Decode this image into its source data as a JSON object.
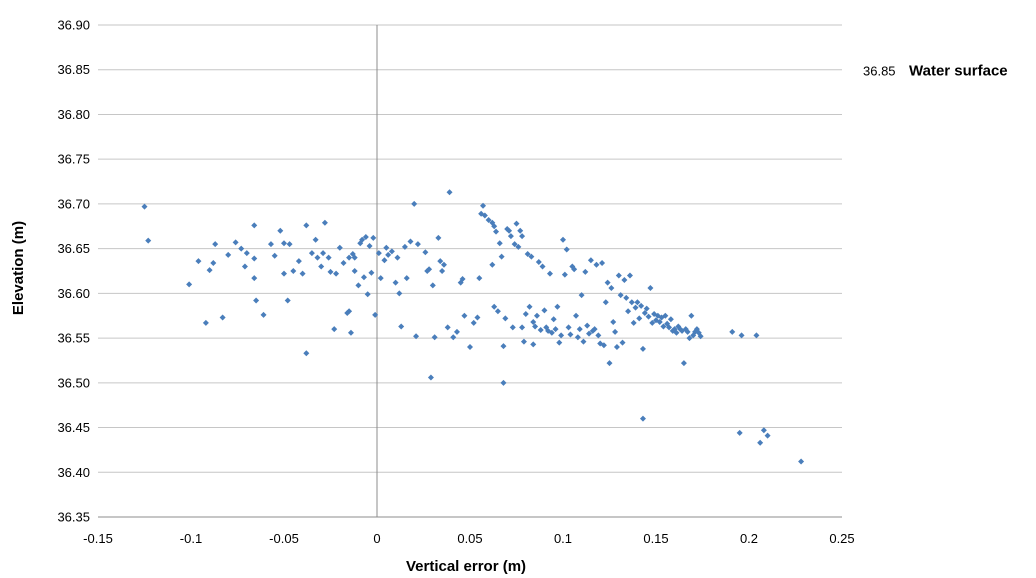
{
  "chart_data": {
    "type": "scatter",
    "xlabel": "Vertical error (m)",
    "ylabel": "Elevation (m)",
    "xlim": [
      -0.15,
      0.25
    ],
    "ylim": [
      36.35,
      36.9
    ],
    "x_ticks": [
      "-0.15",
      "-0.1",
      "-0.05",
      "0",
      "0.05",
      "0.1",
      "0.15",
      "0.2",
      "0.25"
    ],
    "y_ticks": [
      "36.35",
      "36.40",
      "36.45",
      "36.50",
      "36.55",
      "36.60",
      "36.65",
      "36.70",
      "36.75",
      "36.80",
      "36.85",
      "36.90"
    ],
    "grid": "horizontal",
    "marker_color": "#4a7ebb",
    "annotation": {
      "value": "36.85",
      "label": "Water surface",
      "y": 36.85
    },
    "points": [
      [
        -0.125,
        36.697
      ],
      [
        -0.123,
        36.659
      ],
      [
        -0.101,
        36.61
      ],
      [
        -0.096,
        36.636
      ],
      [
        -0.092,
        36.567
      ],
      [
        -0.09,
        36.626
      ],
      [
        -0.088,
        36.634
      ],
      [
        -0.087,
        36.655
      ],
      [
        -0.083,
        36.573
      ],
      [
        -0.08,
        36.643
      ],
      [
        -0.076,
        36.657
      ],
      [
        -0.073,
        36.65
      ],
      [
        -0.071,
        36.63
      ],
      [
        -0.07,
        36.645
      ],
      [
        -0.066,
        36.676
      ],
      [
        -0.066,
        36.639
      ],
      [
        -0.066,
        36.617
      ],
      [
        -0.065,
        36.592
      ],
      [
        -0.061,
        36.576
      ],
      [
        -0.057,
        36.655
      ],
      [
        -0.055,
        36.642
      ],
      [
        -0.052,
        36.67
      ],
      [
        -0.05,
        36.622
      ],
      [
        -0.05,
        36.656
      ],
      [
        -0.048,
        36.592
      ],
      [
        -0.047,
        36.655
      ],
      [
        -0.045,
        36.625
      ],
      [
        -0.042,
        36.636
      ],
      [
        -0.04,
        36.622
      ],
      [
        -0.038,
        36.676
      ],
      [
        -0.038,
        36.533
      ],
      [
        -0.035,
        36.645
      ],
      [
        -0.033,
        36.66
      ],
      [
        -0.032,
        36.64
      ],
      [
        -0.03,
        36.63
      ],
      [
        -0.029,
        36.645
      ],
      [
        -0.028,
        36.679
      ],
      [
        -0.026,
        36.64
      ],
      [
        -0.025,
        36.624
      ],
      [
        -0.023,
        36.56
      ],
      [
        -0.022,
        36.622
      ],
      [
        -0.02,
        36.651
      ],
      [
        -0.018,
        36.634
      ],
      [
        -0.016,
        36.578
      ],
      [
        -0.015,
        36.64
      ],
      [
        -0.015,
        36.58
      ],
      [
        -0.014,
        36.556
      ],
      [
        -0.013,
        36.644
      ],
      [
        -0.012,
        36.64
      ],
      [
        -0.012,
        36.625
      ],
      [
        -0.01,
        36.609
      ],
      [
        -0.009,
        36.656
      ],
      [
        -0.008,
        36.66
      ],
      [
        -0.007,
        36.618
      ],
      [
        -0.006,
        36.663
      ],
      [
        -0.005,
        36.599
      ],
      [
        -0.004,
        36.653
      ],
      [
        -0.003,
        36.623
      ],
      [
        -0.002,
        36.662
      ],
      [
        -0.001,
        36.576
      ],
      [
        0.001,
        36.645
      ],
      [
        0.002,
        36.617
      ],
      [
        0.004,
        36.637
      ],
      [
        0.005,
        36.651
      ],
      [
        0.006,
        36.643
      ],
      [
        0.008,
        36.647
      ],
      [
        0.01,
        36.612
      ],
      [
        0.011,
        36.64
      ],
      [
        0.012,
        36.6
      ],
      [
        0.013,
        36.563
      ],
      [
        0.015,
        36.652
      ],
      [
        0.016,
        36.617
      ],
      [
        0.018,
        36.658
      ],
      [
        0.02,
        36.7
      ],
      [
        0.021,
        36.552
      ],
      [
        0.022,
        36.655
      ],
      [
        0.026,
        36.646
      ],
      [
        0.027,
        36.625
      ],
      [
        0.028,
        36.627
      ],
      [
        0.029,
        36.506
      ],
      [
        0.03,
        36.609
      ],
      [
        0.031,
        36.551
      ],
      [
        0.033,
        36.662
      ],
      [
        0.034,
        36.636
      ],
      [
        0.035,
        36.625
      ],
      [
        0.036,
        36.632
      ],
      [
        0.038,
        36.562
      ],
      [
        0.039,
        36.713
      ],
      [
        0.041,
        36.551
      ],
      [
        0.043,
        36.557
      ],
      [
        0.045,
        36.612
      ],
      [
        0.046,
        36.616
      ],
      [
        0.047,
        36.575
      ],
      [
        0.05,
        36.54
      ],
      [
        0.052,
        36.567
      ],
      [
        0.054,
        36.573
      ],
      [
        0.055,
        36.617
      ],
      [
        0.056,
        36.689
      ],
      [
        0.057,
        36.698
      ],
      [
        0.058,
        36.687
      ],
      [
        0.06,
        36.682
      ],
      [
        0.062,
        36.679
      ],
      [
        0.063,
        36.675
      ],
      [
        0.064,
        36.669
      ],
      [
        0.062,
        36.632
      ],
      [
        0.063,
        36.585
      ],
      [
        0.065,
        36.58
      ],
      [
        0.066,
        36.656
      ],
      [
        0.067,
        36.641
      ],
      [
        0.068,
        36.5
      ],
      [
        0.068,
        36.541
      ],
      [
        0.069,
        36.572
      ],
      [
        0.07,
        36.672
      ],
      [
        0.071,
        36.67
      ],
      [
        0.072,
        36.664
      ],
      [
        0.073,
        36.562
      ],
      [
        0.074,
        36.655
      ],
      [
        0.075,
        36.678
      ],
      [
        0.076,
        36.652
      ],
      [
        0.077,
        36.67
      ],
      [
        0.078,
        36.664
      ],
      [
        0.078,
        36.562
      ],
      [
        0.079,
        36.546
      ],
      [
        0.08,
        36.577
      ],
      [
        0.081,
        36.644
      ],
      [
        0.082,
        36.585
      ],
      [
        0.083,
        36.641
      ],
      [
        0.084,
        36.568
      ],
      [
        0.084,
        36.543
      ],
      [
        0.085,
        36.563
      ],
      [
        0.086,
        36.575
      ],
      [
        0.087,
        36.635
      ],
      [
        0.088,
        36.559
      ],
      [
        0.089,
        36.63
      ],
      [
        0.09,
        36.581
      ],
      [
        0.091,
        36.562
      ],
      [
        0.092,
        36.558
      ],
      [
        0.093,
        36.622
      ],
      [
        0.094,
        36.556
      ],
      [
        0.095,
        36.571
      ],
      [
        0.096,
        36.56
      ],
      [
        0.097,
        36.585
      ],
      [
        0.098,
        36.545
      ],
      [
        0.099,
        36.553
      ],
      [
        0.1,
        36.66
      ],
      [
        0.101,
        36.621
      ],
      [
        0.102,
        36.649
      ],
      [
        0.103,
        36.562
      ],
      [
        0.104,
        36.554
      ],
      [
        0.105,
        36.63
      ],
      [
        0.106,
        36.627
      ],
      [
        0.107,
        36.575
      ],
      [
        0.108,
        36.551
      ],
      [
        0.109,
        36.56
      ],
      [
        0.11,
        36.598
      ],
      [
        0.111,
        36.546
      ],
      [
        0.112,
        36.624
      ],
      [
        0.113,
        36.564
      ],
      [
        0.114,
        36.555
      ],
      [
        0.115,
        36.637
      ],
      [
        0.116,
        36.558
      ],
      [
        0.117,
        36.56
      ],
      [
        0.118,
        36.632
      ],
      [
        0.119,
        36.553
      ],
      [
        0.12,
        36.544
      ],
      [
        0.121,
        36.634
      ],
      [
        0.122,
        36.542
      ],
      [
        0.123,
        36.59
      ],
      [
        0.124,
        36.612
      ],
      [
        0.125,
        36.522
      ],
      [
        0.126,
        36.606
      ],
      [
        0.127,
        36.568
      ],
      [
        0.128,
        36.557
      ],
      [
        0.129,
        36.54
      ],
      [
        0.13,
        36.62
      ],
      [
        0.131,
        36.598
      ],
      [
        0.132,
        36.545
      ],
      [
        0.133,
        36.615
      ],
      [
        0.134,
        36.595
      ],
      [
        0.135,
        36.58
      ],
      [
        0.136,
        36.62
      ],
      [
        0.137,
        36.59
      ],
      [
        0.138,
        36.567
      ],
      [
        0.139,
        36.584
      ],
      [
        0.14,
        36.59
      ],
      [
        0.141,
        36.572
      ],
      [
        0.142,
        36.586
      ],
      [
        0.143,
        36.538
      ],
      [
        0.144,
        36.578
      ],
      [
        0.145,
        36.583
      ],
      [
        0.146,
        36.574
      ],
      [
        0.147,
        36.606
      ],
      [
        0.148,
        36.567
      ],
      [
        0.149,
        36.577
      ],
      [
        0.15,
        36.57
      ],
      [
        0.151,
        36.575
      ],
      [
        0.152,
        36.568
      ],
      [
        0.153,
        36.573
      ],
      [
        0.154,
        36.563
      ],
      [
        0.155,
        36.575
      ],
      [
        0.156,
        36.566
      ],
      [
        0.157,
        36.562
      ],
      [
        0.158,
        36.571
      ],
      [
        0.159,
        36.558
      ],
      [
        0.16,
        36.56
      ],
      [
        0.161,
        36.556
      ],
      [
        0.162,
        36.563
      ],
      [
        0.163,
        36.56
      ],
      [
        0.164,
        36.558
      ],
      [
        0.165,
        36.522
      ],
      [
        0.166,
        36.56
      ],
      [
        0.167,
        36.557
      ],
      [
        0.168,
        36.55
      ],
      [
        0.169,
        36.575
      ],
      [
        0.17,
        36.553
      ],
      [
        0.171,
        36.557
      ],
      [
        0.172,
        36.56
      ],
      [
        0.173,
        36.556
      ],
      [
        0.174,
        36.552
      ],
      [
        0.143,
        36.46
      ],
      [
        0.191,
        36.557
      ],
      [
        0.195,
        36.444
      ],
      [
        0.196,
        36.553
      ],
      [
        0.204,
        36.553
      ],
      [
        0.206,
        36.433
      ],
      [
        0.208,
        36.447
      ],
      [
        0.21,
        36.441
      ],
      [
        0.228,
        36.412
      ]
    ]
  }
}
